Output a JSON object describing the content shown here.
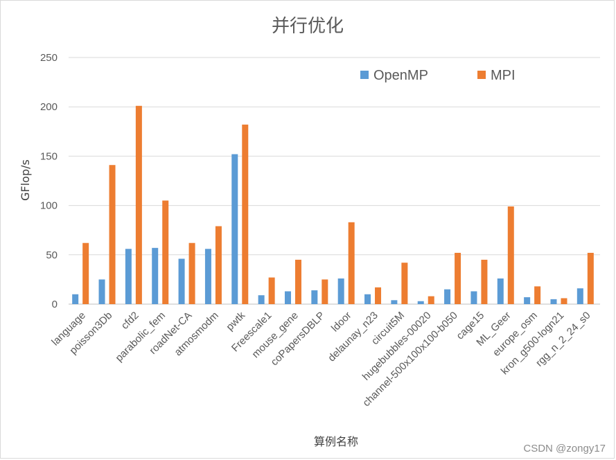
{
  "chart_data": {
    "type": "bar",
    "title": "并行优化",
    "xlabel": "算例名称",
    "ylabel": "GFlop/s",
    "ylim": [
      0,
      250
    ],
    "yticks": [
      0,
      50,
      100,
      150,
      200,
      250
    ],
    "grid": true,
    "legend_position": "top-right",
    "categories": [
      "language",
      "poisson3Db",
      "cfd2",
      "parabolic_fem",
      "roadNet-CA",
      "atmosmodm",
      "pwtk",
      "Freescale1",
      "mouse_gene",
      "coPapersDBLP",
      "ldoor",
      "delaunay_n23",
      "circuit5M",
      "hugebubbles-00020",
      "channel-500x100x100-b050",
      "cage15",
      "ML_Geer",
      "europe_osm",
      "kron_g500-logn21",
      "rgg_n_2_24_s0"
    ],
    "series": [
      {
        "name": "OpenMP",
        "color": "#5b9bd5",
        "values": [
          10,
          25,
          56,
          57,
          46,
          56,
          152,
          9,
          13,
          14,
          26,
          10,
          4,
          3,
          15,
          13,
          26,
          7,
          5,
          16
        ]
      },
      {
        "name": "MPI",
        "color": "#ed7d31",
        "values": [
          62,
          141,
          201,
          105,
          62,
          79,
          182,
          27,
          45,
          25,
          83,
          17,
          42,
          8,
          52,
          45,
          99,
          18,
          6,
          52
        ]
      }
    ]
  },
  "watermark": "CSDN @zongy17"
}
